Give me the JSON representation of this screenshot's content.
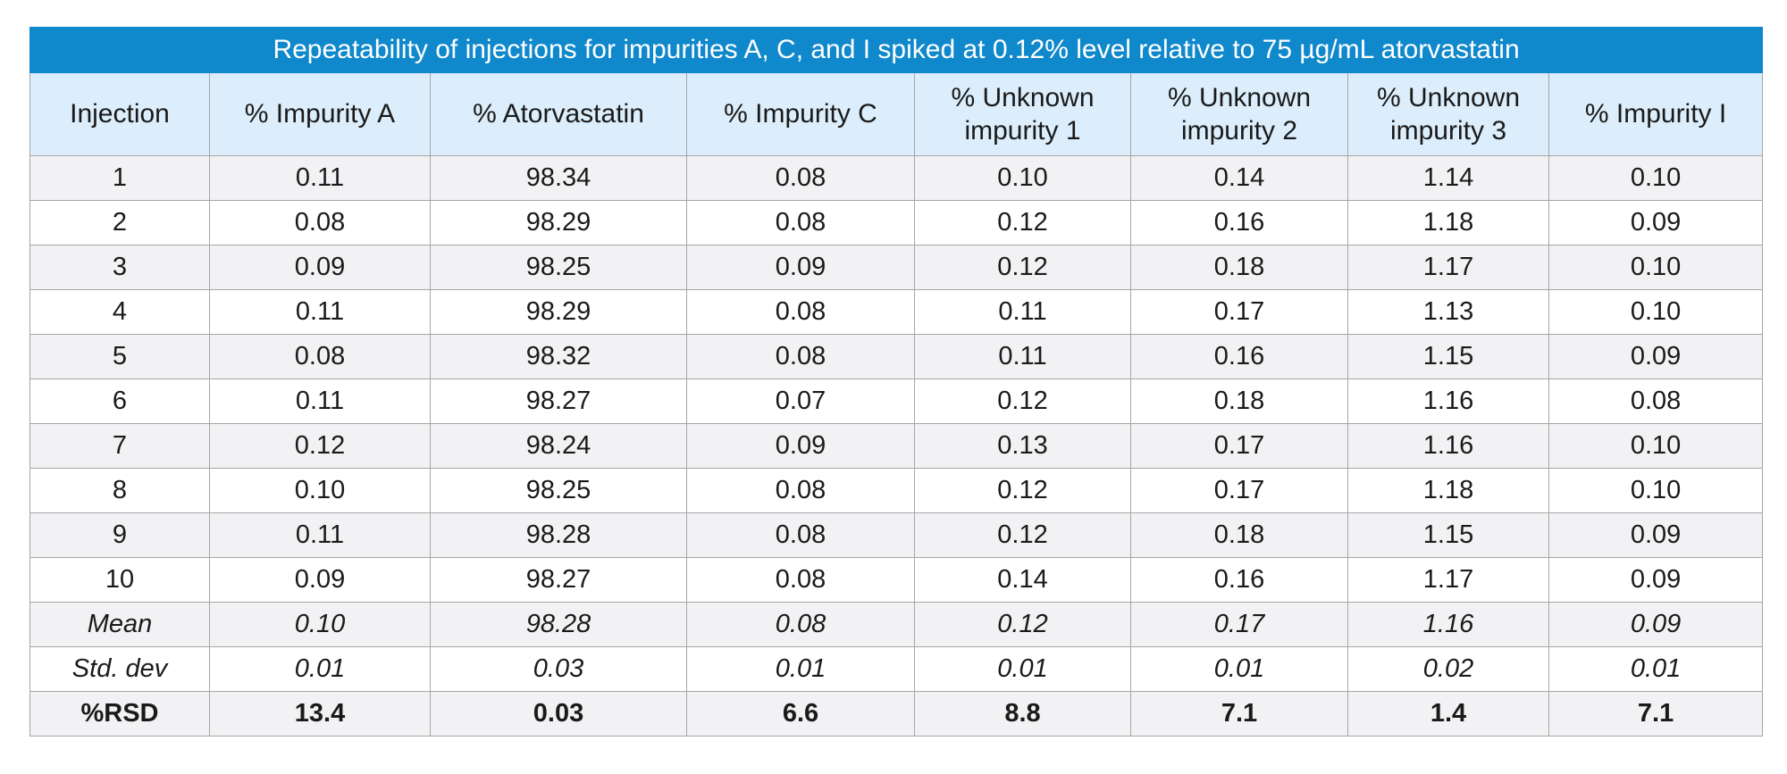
{
  "table": {
    "title": "Repeatability of injections for impurities A, C, and I spiked at 0.12% level relative to 75 µg/mL atorvastatin",
    "headers": [
      {
        "line1": "Injection",
        "line2": ""
      },
      {
        "line1": "% Impurity A",
        "line2": ""
      },
      {
        "line1": "% Atorvastatin",
        "line2": ""
      },
      {
        "line1": "% Impurity C",
        "line2": ""
      },
      {
        "line1": "% Unknown",
        "line2": "impurity 1"
      },
      {
        "line1": "% Unknown",
        "line2": "impurity 2"
      },
      {
        "line1": "% Unknown",
        "line2": "impurity 3"
      },
      {
        "line1": "% Impurity I",
        "line2": ""
      }
    ],
    "rows": [
      [
        "1",
        "0.11",
        "98.34",
        "0.08",
        "0.10",
        "0.14",
        "1.14",
        "0.10"
      ],
      [
        "2",
        "0.08",
        "98.29",
        "0.08",
        "0.12",
        "0.16",
        "1.18",
        "0.09"
      ],
      [
        "3",
        "0.09",
        "98.25",
        "0.09",
        "0.12",
        "0.18",
        "1.17",
        "0.10"
      ],
      [
        "4",
        "0.11",
        "98.29",
        "0.08",
        "0.11",
        "0.17",
        "1.13",
        "0.10"
      ],
      [
        "5",
        "0.08",
        "98.32",
        "0.08",
        "0.11",
        "0.16",
        "1.15",
        "0.09"
      ],
      [
        "6",
        "0.11",
        "98.27",
        "0.07",
        "0.12",
        "0.18",
        "1.16",
        "0.08"
      ],
      [
        "7",
        "0.12",
        "98.24",
        "0.09",
        "0.13",
        "0.17",
        "1.16",
        "0.10"
      ],
      [
        "8",
        "0.10",
        "98.25",
        "0.08",
        "0.12",
        "0.17",
        "1.18",
        "0.10"
      ],
      [
        "9",
        "0.11",
        "98.28",
        "0.08",
        "0.12",
        "0.18",
        "1.15",
        "0.09"
      ],
      [
        "10",
        "0.09",
        "98.27",
        "0.08",
        "0.14",
        "0.16",
        "1.17",
        "0.09"
      ]
    ],
    "mean": [
      "Mean",
      "0.10",
      "98.28",
      "0.08",
      "0.12",
      "0.17",
      "1.16",
      "0.09"
    ],
    "stddev": [
      "Std. dev",
      "0.01",
      "0.03",
      "0.01",
      "0.01",
      "0.01",
      "0.02",
      "0.01"
    ],
    "rsd": [
      "%RSD",
      "13.4",
      "0.03",
      "6.6",
      "8.8",
      "7.1",
      "1.4",
      "7.1"
    ]
  },
  "colors": {
    "title_bg": "#0f88cc",
    "header_bg": "#dceefb",
    "stripe_bg": "#f2f2f4",
    "border": "#a6a6a6"
  }
}
